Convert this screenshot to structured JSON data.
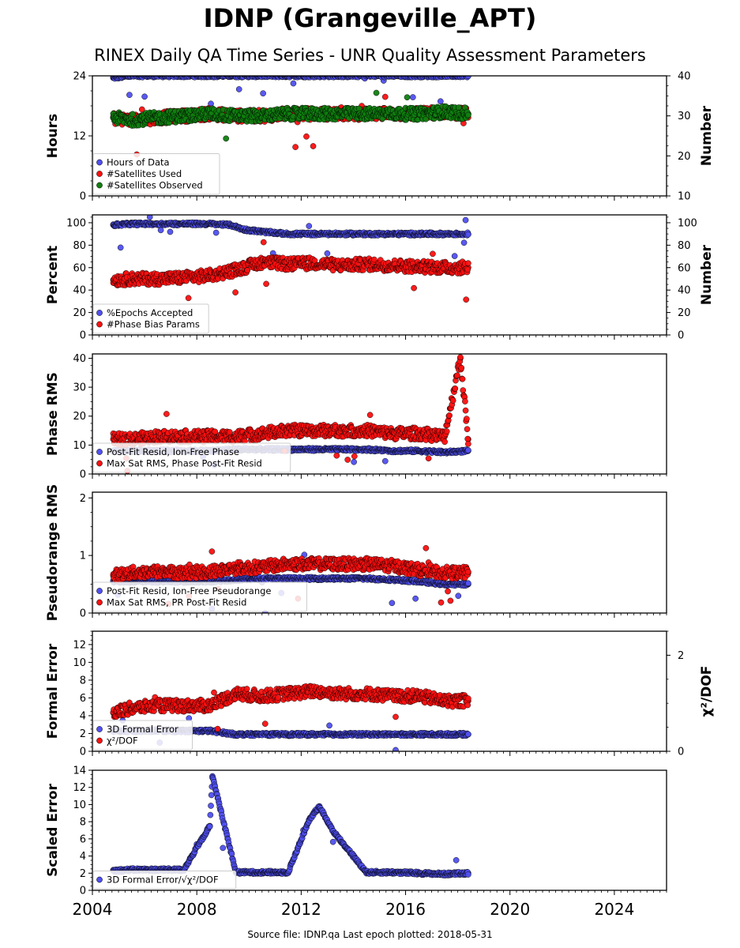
{
  "title": "IDNP (Grangeville_APT)",
  "subtitle": "RINEX Daily QA Time Series - UNR Quality Assessment Parameters",
  "footer": "Source file: IDNP.qa Last epoch plotted: 2018-05-31",
  "colors": {
    "blue": "#5050f0",
    "red": "#ff1010",
    "green": "#108010",
    "edge": "#000000"
  },
  "chart_data": [
    {
      "type": "scatter",
      "ylabel": "Hours",
      "ylim": [
        0,
        24
      ],
      "yticks": [
        0,
        12,
        24
      ],
      "y2label": "Number",
      "y2lim": [
        10,
        40
      ],
      "y2ticks": [
        10,
        20,
        30,
        40
      ],
      "xlim": [
        2004,
        2026
      ],
      "xticks": [
        2004,
        2008,
        2012,
        2016,
        2020,
        2024
      ],
      "legend_position": "lower-left",
      "series": [
        {
          "name": "Hours of Data",
          "axis": "left",
          "color": "blue",
          "x": [
            2004.8,
            2005.5,
            2006.5,
            2007.5,
            2008.5,
            2009.5,
            2010.5,
            2011.5,
            2012.5,
            2013.5,
            2014.5,
            2015.5,
            2016.5,
            2017.5,
            2018.4
          ],
          "y": [
            23.6,
            24,
            24,
            24,
            24,
            24,
            24,
            24,
            24,
            24,
            24,
            24,
            24,
            24,
            24
          ]
        },
        {
          "name": "#Satellites Used",
          "axis": "right",
          "color": "red",
          "x": [
            2004.8,
            2005.5,
            2006.5,
            2007.5,
            2008.5,
            2009.5,
            2010.5,
            2011.5,
            2012.5,
            2013.5,
            2014.5,
            2015.5,
            2016.5,
            2017.5,
            2018.4
          ],
          "y": [
            29.5,
            29,
            29.5,
            30,
            30.5,
            30,
            30,
            30.5,
            30.5,
            30.5,
            30.5,
            30.5,
            30.5,
            31,
            30.5
          ]
        },
        {
          "name": "#Satellites Observed",
          "axis": "right",
          "color": "green",
          "x": [
            2004.8,
            2005.5,
            2006.5,
            2007.5,
            2008.5,
            2009.5,
            2010.5,
            2011.5,
            2012.5,
            2013.5,
            2014.5,
            2015.5,
            2016.5,
            2017.5,
            2018.4
          ],
          "y": [
            29.5,
            29,
            29.5,
            30,
            30.5,
            30,
            30,
            30.5,
            30.5,
            30.5,
            30.5,
            30.5,
            30.5,
            31,
            30.5
          ]
        }
      ]
    },
    {
      "type": "scatter",
      "ylabel": "Percent",
      "ylim": [
        0,
        107
      ],
      "yticks": [
        0,
        20,
        40,
        60,
        80,
        100
      ],
      "y2label": "Number",
      "y2lim": [
        0,
        107
      ],
      "y2ticks": [
        0,
        20,
        40,
        60,
        80,
        100
      ],
      "xlim": [
        2004,
        2026
      ],
      "xticks": [
        2004,
        2008,
        2012,
        2016,
        2020,
        2024
      ],
      "legend_position": "lower-left",
      "series": [
        {
          "name": "%Epochs Accepted",
          "axis": "left",
          "color": "blue",
          "x": [
            2004.8,
            2005.5,
            2006.5,
            2007.5,
            2008.5,
            2009.3,
            2009.8,
            2010.5,
            2011.5,
            2012.5,
            2013.5,
            2014.5,
            2015.5,
            2016.5,
            2017.5,
            2018.4
          ],
          "y": [
            98,
            99,
            99,
            99,
            99,
            98,
            94,
            92,
            90,
            90,
            90,
            90,
            90,
            90,
            90,
            90
          ]
        },
        {
          "name": "#Phase Bias Params",
          "axis": "right",
          "color": "red",
          "x": [
            2004.8,
            2005.5,
            2006.5,
            2007.5,
            2008.5,
            2009.5,
            2010.5,
            2011.5,
            2012.5,
            2013.5,
            2014.5,
            2015.5,
            2016.5,
            2017.5,
            2018.4
          ],
          "y": [
            49,
            50,
            50,
            51,
            53,
            58,
            65,
            63,
            64,
            62,
            63,
            62,
            61,
            60,
            60
          ]
        }
      ]
    },
    {
      "type": "scatter",
      "ylabel": "Phase RMS",
      "ylim": [
        0,
        41.5
      ],
      "yticks": [
        0,
        10,
        20,
        30,
        40
      ],
      "xlim": [
        2004,
        2026
      ],
      "xticks": [
        2004,
        2008,
        2012,
        2016,
        2020,
        2024
      ],
      "legend_position": "lower-left",
      "series": [
        {
          "name": "Post-Fit Resid, Ion-Free Phase",
          "color": "blue",
          "x": [
            2004.8,
            2005.5,
            2006.5,
            2007.5,
            2008.5,
            2009.5,
            2010.5,
            2011.5,
            2012.5,
            2013.5,
            2014.5,
            2015.5,
            2016.5,
            2017.5,
            2018.4
          ],
          "y": [
            8,
            8,
            8,
            8,
            8,
            8.5,
            8.5,
            8.5,
            8.5,
            8.5,
            8.5,
            8,
            8,
            7.5,
            8
          ]
        },
        {
          "name": "Max Sat RMS, Phase Post-Fit Resid",
          "color": "red",
          "x": [
            2004.8,
            2005.5,
            2006.5,
            2007.5,
            2008.5,
            2009.5,
            2010.5,
            2011.5,
            2012.5,
            2013.5,
            2014.5,
            2015.5,
            2016.5,
            2017.5,
            2018.1,
            2018.4
          ],
          "y": [
            12,
            12,
            13,
            13,
            13,
            13,
            14,
            15,
            15,
            15,
            15,
            14,
            14,
            13,
            40,
            12
          ]
        }
      ]
    },
    {
      "type": "scatter",
      "ylabel": "Pseudorange RMS",
      "ylim": [
        0,
        2.1
      ],
      "yticks": [
        0,
        1,
        2
      ],
      "xlim": [
        2004,
        2026
      ],
      "xticks": [
        2004,
        2008,
        2012,
        2016,
        2020,
        2024
      ],
      "legend_position": "lower-left",
      "series": [
        {
          "name": "Post-Fit Resid, Ion-Free Pseudorange",
          "color": "blue",
          "x": [
            2004.8,
            2005.5,
            2006.5,
            2007.5,
            2008.5,
            2009.5,
            2010.5,
            2011.5,
            2012.5,
            2013.5,
            2014.5,
            2015.5,
            2016.5,
            2017.5,
            2018.4
          ],
          "y": [
            0.55,
            0.55,
            0.55,
            0.55,
            0.55,
            0.58,
            0.6,
            0.6,
            0.6,
            0.6,
            0.6,
            0.58,
            0.55,
            0.5,
            0.5
          ]
        },
        {
          "name": "Max Sat RMS, PR Post-Fit Resid",
          "color": "red",
          "x": [
            2004.8,
            2005.5,
            2006.5,
            2007.5,
            2008.5,
            2009.5,
            2010.5,
            2011.5,
            2012.5,
            2013.5,
            2014.5,
            2015.5,
            2016.5,
            2017.5,
            2018.4
          ],
          "y": [
            0.65,
            0.7,
            0.72,
            0.7,
            0.72,
            0.78,
            0.8,
            0.85,
            0.85,
            0.85,
            0.85,
            0.82,
            0.75,
            0.7,
            0.7
          ]
        }
      ]
    },
    {
      "type": "scatter",
      "ylabel": "Formal Error",
      "ylim": [
        0,
        13.5
      ],
      "yticks": [
        0,
        2,
        4,
        6,
        8,
        10,
        12
      ],
      "y2label": "χ²/DOF",
      "y2lim": [
        0,
        2.5
      ],
      "y2ticks": [
        0,
        2
      ],
      "xlim": [
        2004,
        2026
      ],
      "xticks": [
        2004,
        2008,
        2012,
        2016,
        2020,
        2024
      ],
      "legend_position": "lower-left",
      "series": [
        {
          "name": "3D Formal Error",
          "axis": "left",
          "color": "blue",
          "x": [
            2004.8,
            2005.5,
            2006.5,
            2007.5,
            2008.5,
            2009.5,
            2010.5,
            2011.5,
            2012.5,
            2013.5,
            2014.5,
            2015.5,
            2016.5,
            2017.5,
            2018.4
          ],
          "y": [
            2.3,
            2.3,
            2.3,
            2.3,
            2.3,
            1.9,
            1.9,
            1.9,
            1.9,
            1.9,
            1.9,
            1.9,
            1.9,
            1.9,
            1.9
          ]
        },
        {
          "name": "χ²/DOF",
          "axis": "right",
          "color": "red",
          "x": [
            2004.8,
            2005.5,
            2006.5,
            2007.5,
            2008.5,
            2009.5,
            2010.5,
            2011.5,
            2012.5,
            2013.5,
            2014.5,
            2015.5,
            2016.5,
            2017.5,
            2018.4
          ],
          "y": [
            0.8,
            0.9,
            0.95,
            0.95,
            0.95,
            1.2,
            1.15,
            1.2,
            1.25,
            1.2,
            1.2,
            1.15,
            1.15,
            1.05,
            1.05
          ]
        }
      ]
    },
    {
      "type": "scatter",
      "ylabel": "Scaled Error",
      "ylim": [
        0,
        14
      ],
      "yticks": [
        0,
        2,
        4,
        6,
        8,
        10,
        12,
        14
      ],
      "xlim": [
        2004,
        2026
      ],
      "xticks": [
        2004,
        2008,
        2012,
        2016,
        2020,
        2024
      ],
      "legend_position": "lower-left",
      "series": [
        {
          "name": "3D Formal Error/√χ²/DOF",
          "color": "blue",
          "x": [
            2004.8,
            2005.5,
            2006.5,
            2007.5,
            2008.5,
            2008.6,
            2009.5,
            2010.5,
            2011.5,
            2012.3,
            2012.7,
            2013.2,
            2014.5,
            2015.5,
            2016.5,
            2017.5,
            2018.4
          ],
          "y": [
            2.3,
            2.4,
            2.4,
            2.4,
            7.5,
            13.3,
            2.1,
            2.1,
            2.1,
            8.2,
            9.8,
            7,
            2.1,
            2.1,
            2,
            1.9,
            2
          ]
        }
      ]
    }
  ]
}
